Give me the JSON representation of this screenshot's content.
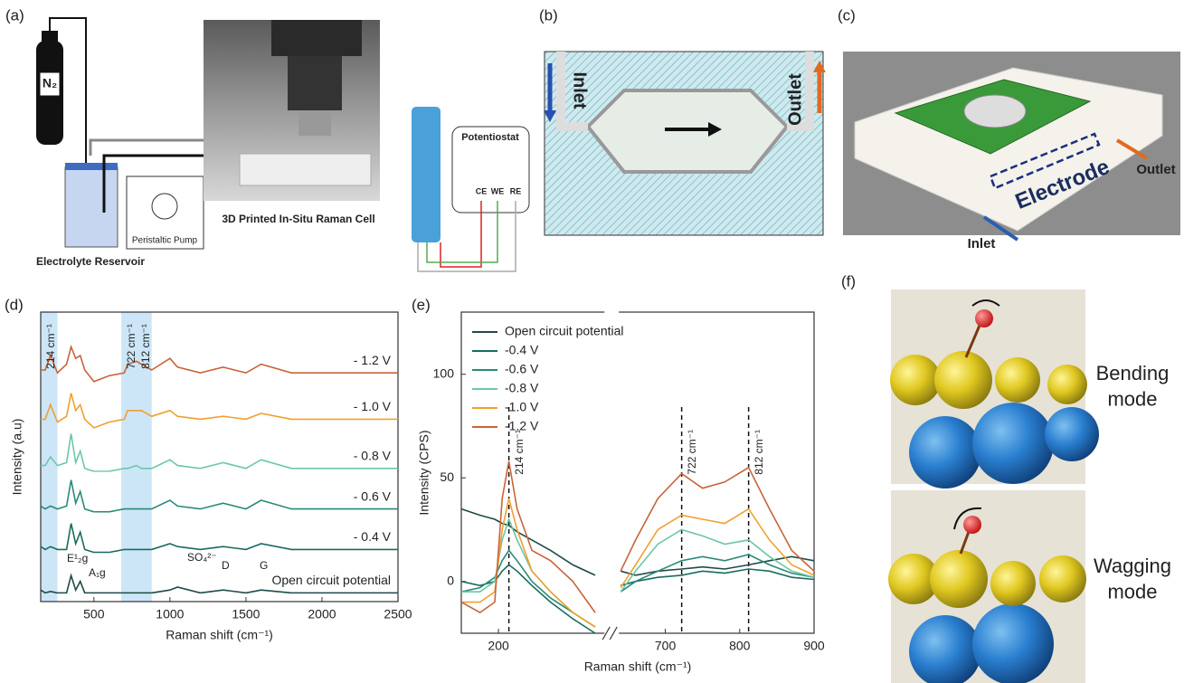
{
  "panels": {
    "a": {
      "label": "(a)",
      "gas": "N₂",
      "reservoir": "Electrolyte Reservoir",
      "pump": "Peristaltic Pump",
      "cell": "3D Printed In-Situ Raman Cell",
      "potentiostat": "Potentiostat",
      "electrodes": [
        "CE",
        "WE",
        "RE"
      ]
    },
    "b": {
      "label": "(b)",
      "inlet": "Inlet",
      "outlet": "Outlet"
    },
    "c": {
      "label": "(c)",
      "electrode": "Electrode",
      "outlet": "Outlet",
      "inlet": "Inlet"
    },
    "f": {
      "label": "(f)",
      "modes": [
        "Bending mode",
        "Wagging mode"
      ]
    }
  },
  "chart_data": [
    {
      "type": "line",
      "panel_label": "(d)",
      "x_label": "Raman shift (cm⁻¹)",
      "y_label": "Intensity (a.u)",
      "xlim": [
        150,
        2500
      ],
      "xticks": [
        500,
        1000,
        1500,
        2000,
        2500
      ],
      "ylim": [
        0,
        100
      ],
      "highlight_bands": [
        [
          150,
          260
        ],
        [
          680,
          880
        ]
      ],
      "annotations": [
        "214 cm⁻¹",
        "722 cm⁻¹",
        "812 cm⁻¹",
        "E¹₂g",
        "A₁g",
        "SO₄²⁻",
        "D",
        "G"
      ],
      "x": [
        150,
        180,
        214,
        260,
        320,
        350,
        380,
        410,
        440,
        500,
        600,
        700,
        722,
        780,
        812,
        880,
        1000,
        1050,
        1200,
        1350,
        1500,
        1600,
        1800,
        2000,
        2500
      ],
      "series": [
        {
          "name": "Open circuit potential",
          "color": "#1f4a48",
          "values": [
            4,
            3,
            3.5,
            3,
            3,
            9,
            4,
            7,
            3,
            3,
            3,
            3,
            3,
            3,
            3,
            3,
            4,
            5,
            3,
            4,
            3,
            4,
            3,
            3,
            3
          ]
        },
        {
          "name": "- 0.4 V",
          "color": "#1a6b5e",
          "values": [
            19,
            18,
            19,
            18,
            18,
            27,
            20,
            24,
            18,
            17,
            17,
            18,
            18,
            18,
            18,
            18,
            20,
            19,
            18,
            19,
            18,
            20,
            18,
            18,
            18
          ]
        },
        {
          "name": "- 0.6 V",
          "color": "#2a8a78",
          "values": [
            33,
            32,
            33,
            32,
            33,
            42,
            34,
            38,
            32,
            31,
            31,
            32,
            32,
            32,
            32,
            32,
            35,
            33,
            32,
            34,
            32,
            35,
            32,
            32,
            32
          ]
        },
        {
          "name": "- 0.8 V",
          "color": "#6cc7a6",
          "values": [
            47,
            47,
            50,
            47,
            48,
            58,
            48,
            52,
            46,
            45,
            45,
            46,
            46,
            47,
            46,
            46,
            49,
            47,
            46,
            48,
            46,
            49,
            46,
            46,
            46
          ]
        },
        {
          "name": "- 1.0 V",
          "color": "#f0a030",
          "values": [
            63,
            63,
            68,
            62,
            64,
            72,
            66,
            68,
            63,
            60,
            62,
            63,
            66,
            66,
            66,
            64,
            66,
            64,
            63,
            64,
            63,
            65,
            63,
            63,
            63
          ]
        },
        {
          "name": "- 1.2 V",
          "color": "#c8643a",
          "values": [
            80,
            80,
            85,
            79,
            82,
            88,
            84,
            85,
            80,
            76,
            78,
            79,
            82,
            83,
            82,
            80,
            84,
            81,
            79,
            81,
            79,
            82,
            79,
            79,
            79
          ]
        }
      ]
    },
    {
      "type": "line",
      "panel_label": "(e)",
      "x_label": "Raman shift (cm⁻¹)",
      "y_label": "Intensity (CPS)",
      "xlim": [
        150,
        900
      ],
      "xbreak": [
        340,
        640
      ],
      "xticks": [
        200,
        700,
        800,
        900
      ],
      "ylim": [
        -25,
        130
      ],
      "yticks": [
        0,
        50,
        100
      ],
      "legend": "upper left",
      "vlines": [
        214,
        722,
        812
      ],
      "vline_labels": [
        "214 cm⁻¹",
        "722 cm⁻¹",
        "812 cm⁻¹"
      ],
      "x": [
        150,
        175,
        195,
        205,
        214,
        225,
        245,
        270,
        300,
        330,
        640,
        660,
        690,
        722,
        750,
        780,
        812,
        840,
        870,
        900
      ],
      "series": [
        {
          "name": "Open circuit potential",
          "color": "#1f4a48",
          "values": [
            35,
            32,
            30,
            28,
            27,
            24,
            20,
            15,
            8,
            3,
            5,
            3,
            5,
            6,
            7,
            6,
            8,
            10,
            12,
            10
          ]
        },
        {
          "name": "-0.4 V",
          "color": "#1a6b5e",
          "values": [
            0,
            -2,
            0,
            5,
            8,
            5,
            -2,
            -10,
            -18,
            -25,
            -2,
            0,
            2,
            3,
            5,
            4,
            6,
            5,
            2,
            1
          ]
        },
        {
          "name": "-0.6 V",
          "color": "#2a8a78",
          "values": [
            -5,
            -3,
            2,
            10,
            15,
            10,
            0,
            -8,
            -15,
            -22,
            -5,
            0,
            5,
            10,
            12,
            10,
            13,
            8,
            4,
            2
          ]
        },
        {
          "name": "-0.8 V",
          "color": "#6cc7a6",
          "values": [
            -5,
            -5,
            0,
            20,
            30,
            20,
            5,
            -5,
            -15,
            -22,
            -5,
            5,
            18,
            25,
            22,
            18,
            20,
            12,
            5,
            2
          ]
        },
        {
          "name": "-1.0 V",
          "color": "#f0a030",
          "values": [
            -10,
            -10,
            -5,
            25,
            40,
            25,
            5,
            -5,
            -15,
            -22,
            -3,
            8,
            25,
            32,
            30,
            28,
            35,
            20,
            8,
            3
          ]
        },
        {
          "name": "-1.2 V",
          "color": "#c8643a",
          "values": [
            -10,
            -15,
            -10,
            40,
            58,
            35,
            15,
            10,
            0,
            -15,
            5,
            20,
            40,
            52,
            45,
            48,
            55,
            35,
            15,
            5
          ]
        }
      ]
    }
  ]
}
